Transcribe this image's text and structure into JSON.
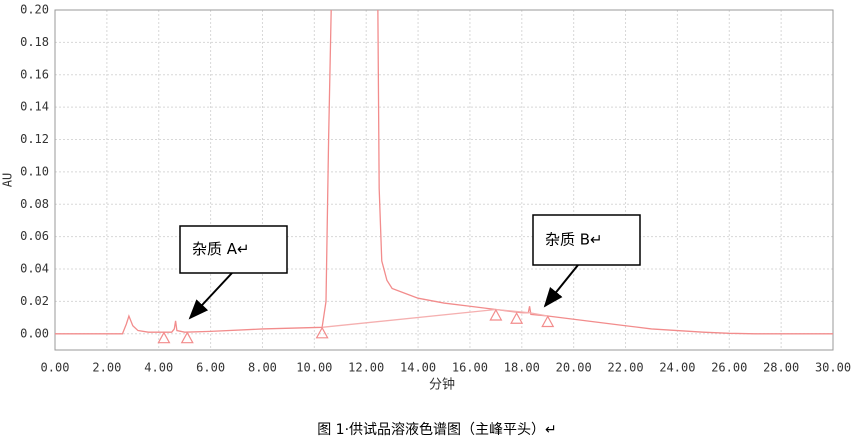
{
  "chart_data": {
    "type": "line",
    "x_label": "分钟",
    "y_label": "AU",
    "caption": "图 1·供试品溶液色谱图（主峰平头）↵",
    "xlim": [
      0,
      30
    ],
    "ylim": [
      -0.01,
      0.2
    ],
    "xticks": [
      {
        "value": 0,
        "label": "0.00"
      },
      {
        "value": 2,
        "label": "2.00"
      },
      {
        "value": 4,
        "label": "4.00"
      },
      {
        "value": 6,
        "label": "6.00"
      },
      {
        "value": 8,
        "label": "8.00"
      },
      {
        "value": 10,
        "label": "10.00"
      },
      {
        "value": 12,
        "label": "12.00"
      },
      {
        "value": 14,
        "label": "14.00"
      },
      {
        "value": 16,
        "label": "16.00"
      },
      {
        "value": 18,
        "label": "18.00"
      },
      {
        "value": 20,
        "label": "20.00"
      },
      {
        "value": 22,
        "label": "22.00"
      },
      {
        "value": 24,
        "label": "24.00"
      },
      {
        "value": 26,
        "label": "26.00"
      },
      {
        "value": 28,
        "label": "28.00"
      },
      {
        "value": 30,
        "label": "30.00"
      }
    ],
    "yticks": [
      {
        "value": 0,
        "label": "0.00"
      },
      {
        "value": 0.02,
        "label": "0.02"
      },
      {
        "value": 0.04,
        "label": "0.04"
      },
      {
        "value": 0.06,
        "label": "0.06"
      },
      {
        "value": 0.08,
        "label": "0.08"
      },
      {
        "value": 0.1,
        "label": "0.10"
      },
      {
        "value": 0.12,
        "label": "0.12"
      },
      {
        "value": 0.14,
        "label": "0.14"
      },
      {
        "value": 0.16,
        "label": "0.16"
      },
      {
        "value": 0.18,
        "label": "0.18"
      },
      {
        "value": 0.2,
        "label": "0.20"
      }
    ],
    "grid": true,
    "series": [
      {
        "color": "#f28c8c",
        "x": [
          0,
          2.6,
          2.75,
          2.85,
          3.0,
          3.2,
          3.6,
          4.5,
          4.6,
          4.65,
          4.7,
          5.0,
          6,
          8,
          10.3,
          10.45,
          10.55,
          10.65,
          12.4,
          12.45,
          12.5,
          12.6,
          12.8,
          13,
          13.5,
          14,
          15,
          16,
          17,
          18,
          18.25,
          18.3,
          18.35,
          19,
          20,
          21,
          22,
          23,
          24,
          25,
          26,
          27,
          30
        ],
        "values": [
          0,
          0,
          0.006,
          0.011,
          0.005,
          0.002,
          0.001,
          0.001,
          0.003,
          0.008,
          0.002,
          0.001,
          0.0015,
          0.003,
          0.004,
          0.02,
          0.12,
          0.2,
          null,
          0.2,
          0.09,
          0.045,
          0.033,
          0.028,
          0.025,
          0.022,
          0.019,
          0.017,
          0.015,
          0.013,
          0.013,
          0.017,
          0.012,
          0.011,
          0.009,
          0.007,
          0.005,
          0.003,
          0.002,
          0.001,
          0.0003,
          0,
          0
        ]
      },
      {
        "color": "#f5b0b0",
        "x": [
          10.3,
          17.0,
          18.3,
          19.0
        ],
        "values": [
          0.004,
          0.015,
          0.013,
          0.011
        ]
      },
      {
        "color": "#f28c8c",
        "marker": "triangle",
        "x": [
          4.2,
          5.1,
          10.3,
          17.0,
          17.8,
          19.0
        ],
        "values": [
          -0.003,
          -0.003,
          0.0,
          0.011,
          0.009,
          0.007
        ]
      }
    ],
    "annotations": [
      {
        "text": "杂质 A↵"
      },
      {
        "text": "杂质 B↵"
      }
    ]
  }
}
